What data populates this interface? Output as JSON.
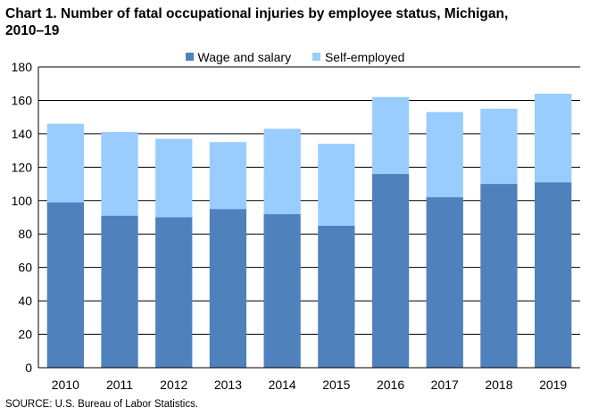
{
  "title_line1": "Chart 1. Number of fatal occupational injuries by employee status, Michigan,",
  "title_line2": "2010–19",
  "source": "SOURCE: U.S. Bureau of Labor Statistics.",
  "colors": {
    "wage": "#4f81bd",
    "self": "#99ccff",
    "grid": "#000000"
  },
  "chart_data": {
    "type": "bar",
    "stacked": true,
    "title": "Chart 1. Number of fatal occupational injuries by employee status, Michigan, 2010–19",
    "xlabel": "",
    "ylabel": "",
    "categories": [
      "2010",
      "2011",
      "2012",
      "2013",
      "2014",
      "2015",
      "2016",
      "2017",
      "2018",
      "2019"
    ],
    "series": [
      {
        "name": "Wage and salary",
        "values": [
          99,
          91,
          90,
          95,
          92,
          85,
          116,
          102,
          110,
          111
        ]
      },
      {
        "name": "Self-employed",
        "values": [
          47,
          50,
          47,
          40,
          51,
          49,
          46,
          51,
          45,
          53
        ]
      }
    ],
    "ylim": [
      0,
      180
    ],
    "yticks": [
      0,
      20,
      40,
      60,
      80,
      100,
      120,
      140,
      160,
      180
    ],
    "grid": true,
    "legend": "top-center"
  }
}
